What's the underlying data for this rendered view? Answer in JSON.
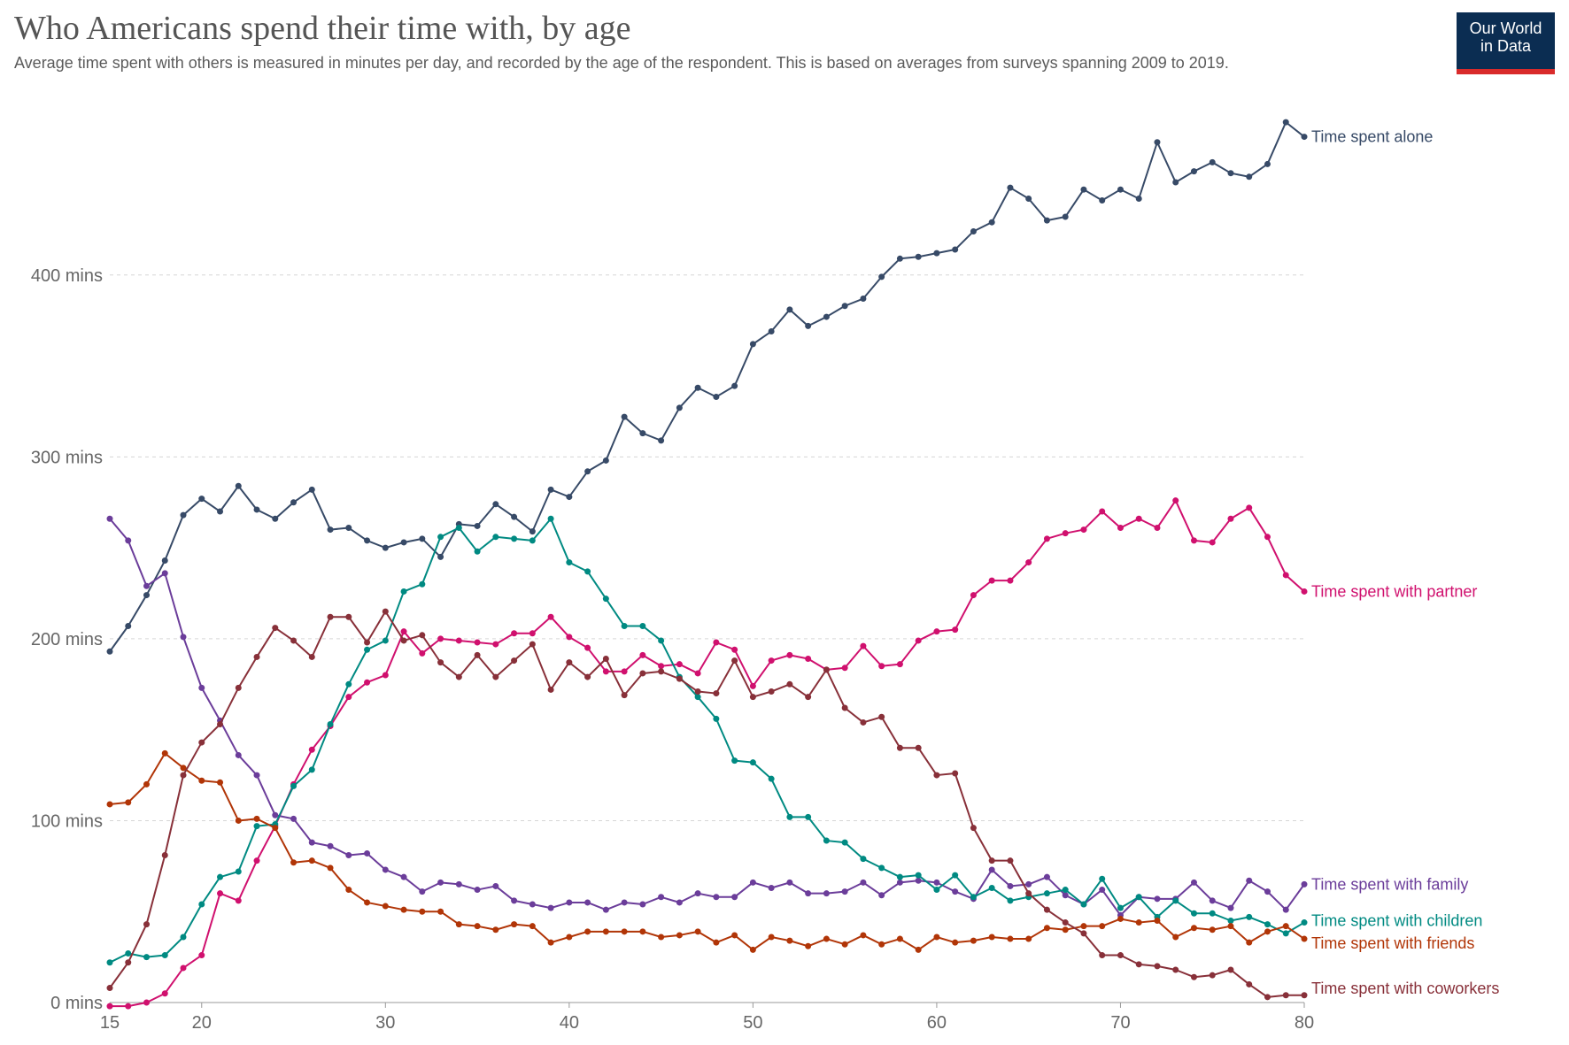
{
  "header": {
    "title": "Who Americans spend their time with, by age",
    "subtitle": "Average time spent with others is measured in minutes per day, and recorded by the age of the respondent. This is based on averages from surveys spanning 2009 to 2019.",
    "logo_line1": "Our World",
    "logo_line2": "in Data"
  },
  "chart_data": {
    "type": "line",
    "title": "Who Americans spend their time with, by age",
    "xlim": [
      15,
      80
    ],
    "ylim": [
      0,
      480
    ],
    "x_ticks": [
      15,
      20,
      30,
      40,
      50,
      60,
      70,
      80
    ],
    "y_ticks": [
      {
        "value": 0,
        "label": "0 mins"
      },
      {
        "value": 100,
        "label": "100 mins"
      },
      {
        "value": 200,
        "label": "200 mins"
      },
      {
        "value": 300,
        "label": "300 mins"
      },
      {
        "value": 400,
        "label": "400 mins"
      }
    ],
    "grid": "horizontal dashed",
    "legend": "right, inline labels at line ends",
    "x": [
      15,
      16,
      17,
      18,
      19,
      20,
      21,
      22,
      23,
      24,
      25,
      26,
      27,
      28,
      29,
      30,
      31,
      32,
      33,
      34,
      35,
      36,
      37,
      38,
      39,
      40,
      41,
      42,
      43,
      44,
      45,
      46,
      47,
      48,
      49,
      50,
      51,
      52,
      53,
      54,
      55,
      56,
      57,
      58,
      59,
      60,
      61,
      62,
      63,
      64,
      65,
      66,
      67,
      68,
      69,
      70,
      71,
      72,
      73,
      74,
      75,
      76,
      77,
      78,
      79,
      80
    ],
    "series": [
      {
        "name": "Time spent alone",
        "color": "#374a67",
        "values": [
          193,
          207,
          224,
          243,
          268,
          277,
          270,
          284,
          271,
          266,
          275,
          282,
          260,
          261,
          254,
          250,
          253,
          255,
          245,
          263,
          262,
          274,
          267,
          259,
          282,
          278,
          292,
          298,
          322,
          313,
          309,
          327,
          338,
          333,
          339,
          362,
          369,
          381,
          372,
          377,
          383,
          387,
          399,
          409,
          410,
          412,
          414,
          424,
          429,
          448,
          442,
          430,
          432,
          447,
          441,
          447,
          442,
          473,
          451,
          457,
          462,
          456,
          454,
          461,
          484,
          476
        ]
      },
      {
        "name": "Time spent with partner",
        "color": "#d0106e",
        "values": [
          -2,
          -2,
          0,
          5,
          19,
          26,
          60,
          56,
          78,
          97,
          120,
          139,
          152,
          168,
          176,
          180,
          204,
          192,
          200,
          199,
          198,
          197,
          203,
          203,
          212,
          201,
          195,
          182,
          182,
          191,
          185,
          186,
          181,
          198,
          194,
          174,
          188,
          191,
          189,
          183,
          184,
          196,
          185,
          186,
          199,
          204,
          205,
          224,
          232,
          232,
          242,
          255,
          258,
          260,
          270,
          261,
          266,
          261,
          276,
          254,
          253,
          266,
          272,
          256,
          235,
          226
        ]
      },
      {
        "name": "Time spent with family",
        "color": "#6b3d9a",
        "values": [
          266,
          254,
          229,
          236,
          201,
          173,
          155,
          136,
          125,
          103,
          101,
          88,
          86,
          81,
          82,
          73,
          69,
          61,
          66,
          65,
          62,
          64,
          56,
          54,
          52,
          55,
          55,
          51,
          55,
          54,
          58,
          55,
          60,
          58,
          58,
          66,
          63,
          66,
          60,
          60,
          61,
          66,
          59,
          66,
          67,
          66,
          61,
          57,
          73,
          64,
          65,
          69,
          59,
          54,
          62,
          48,
          58,
          57,
          57,
          66,
          56,
          52,
          67,
          61,
          51,
          65
        ]
      },
      {
        "name": "Time spent with children",
        "color": "#008a82",
        "values": [
          22,
          27,
          25,
          26,
          36,
          54,
          69,
          72,
          97,
          98,
          119,
          128,
          153,
          175,
          194,
          199,
          226,
          230,
          256,
          261,
          248,
          256,
          255,
          254,
          266,
          242,
          237,
          222,
          207,
          207,
          199,
          179,
          168,
          156,
          133,
          132,
          123,
          102,
          102,
          89,
          88,
          79,
          74,
          69,
          70,
          62,
          70,
          58,
          63,
          56,
          58,
          60,
          62,
          54,
          68,
          52,
          58,
          47,
          56,
          49,
          49,
          45,
          47,
          43,
          38,
          44
        ]
      },
      {
        "name": "Time spent with friends",
        "color": "#b13507",
        "values": [
          109,
          110,
          120,
          137,
          129,
          122,
          121,
          100,
          101,
          96,
          77,
          78,
          74,
          62,
          55,
          53,
          51,
          50,
          50,
          43,
          42,
          40,
          43,
          42,
          33,
          36,
          39,
          39,
          39,
          39,
          36,
          37,
          39,
          33,
          37,
          29,
          36,
          34,
          31,
          35,
          32,
          37,
          32,
          35,
          29,
          36,
          33,
          34,
          36,
          35,
          35,
          41,
          40,
          42,
          42,
          46,
          44,
          45,
          36,
          41,
          40,
          42,
          33,
          39,
          42,
          35
        ]
      },
      {
        "name": "Time spent with coworkers",
        "color": "#883039",
        "values": [
          8,
          22,
          43,
          81,
          125,
          143,
          153,
          173,
          190,
          206,
          199,
          190,
          212,
          212,
          198,
          215,
          199,
          202,
          187,
          179,
          191,
          179,
          188,
          197,
          172,
          187,
          179,
          189,
          169,
          181,
          182,
          178,
          171,
          170,
          188,
          168,
          171,
          175,
          168,
          183,
          162,
          154,
          157,
          140,
          140,
          125,
          126,
          96,
          78,
          78,
          60,
          51,
          44,
          38,
          26,
          26,
          21,
          20,
          18,
          14,
          15,
          18,
          10,
          3,
          4,
          4
        ]
      }
    ]
  }
}
